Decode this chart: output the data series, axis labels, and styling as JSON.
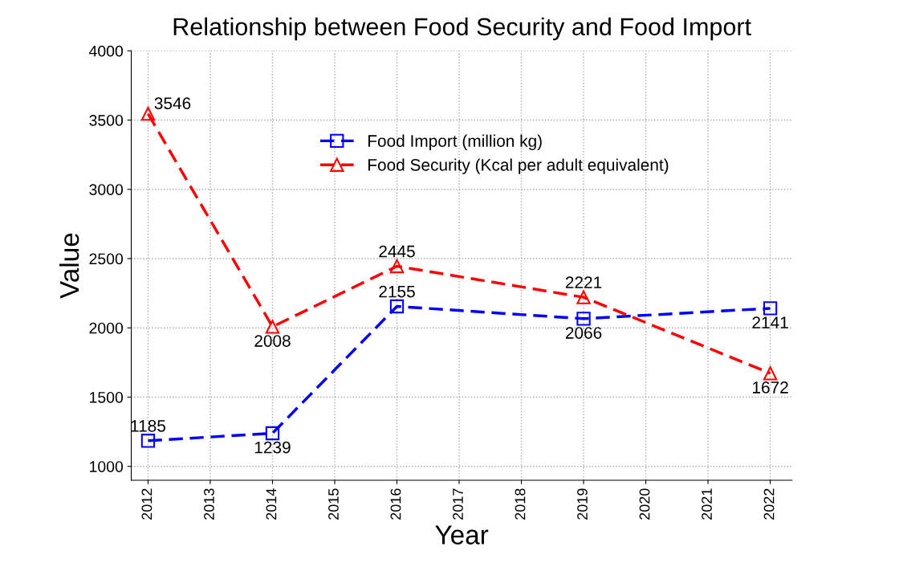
{
  "chart_data": {
    "type": "line",
    "title": "Relationship between Food Security and Food Import",
    "xlabel": "Year",
    "ylabel": "Value",
    "x": [
      2012,
      2014,
      2016,
      2019,
      2022
    ],
    "series": [
      {
        "name": "Food Import (million kg)",
        "color": "#0000ff",
        "values": [
          1185,
          1239,
          2155,
          2066,
          2141
        ],
        "marker": "square"
      },
      {
        "name": "Food Security (Kcal per adult equivalent)",
        "color": "#ff0000",
        "values": [
          3546,
          2008,
          2445,
          2221,
          1672
        ],
        "marker": "triangle"
      }
    ],
    "xlim": [
      2011.73,
      2022.35
    ],
    "xticks": [
      2012,
      2013,
      2014,
      2015,
      2016,
      2017,
      2018,
      2019,
      2020,
      2021,
      2022
    ],
    "ylim": [
      900,
      4000
    ],
    "yticks": [
      1000,
      1500,
      2000,
      2500,
      3000,
      3500,
      4000
    ],
    "grid": true,
    "legend": "top",
    "line_style": "dashed",
    "data_labels": true
  }
}
